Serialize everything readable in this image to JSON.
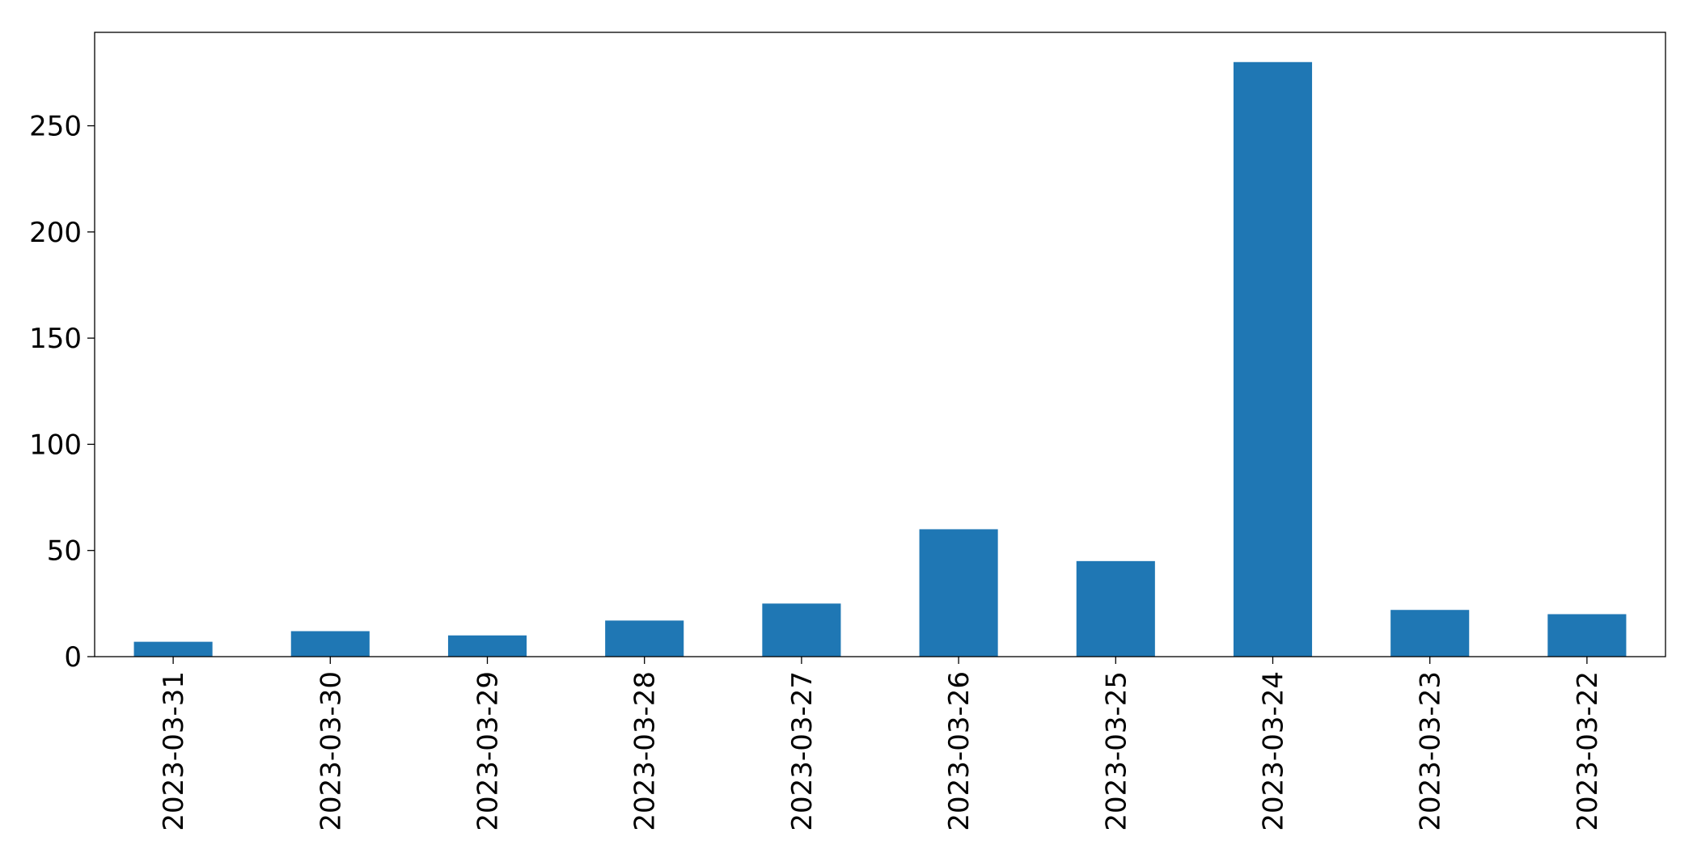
{
  "chart_data": {
    "type": "bar",
    "title": "",
    "xlabel": "",
    "ylabel": "",
    "categories": [
      "2023-03-31",
      "2023-03-30",
      "2023-03-29",
      "2023-03-28",
      "2023-03-27",
      "2023-03-26",
      "2023-03-25",
      "2023-03-24",
      "2023-03-23",
      "2023-03-22"
    ],
    "values": [
      7,
      12,
      10,
      17,
      25,
      60,
      45,
      280,
      22,
      20
    ],
    "ylim": [
      0,
      294
    ],
    "yticks": [
      0,
      50,
      100,
      150,
      200,
      250
    ],
    "grid": false,
    "legend": "none",
    "bar_color": "#1f77b4",
    "axis_color": "#000000",
    "background": "#ffffff"
  }
}
